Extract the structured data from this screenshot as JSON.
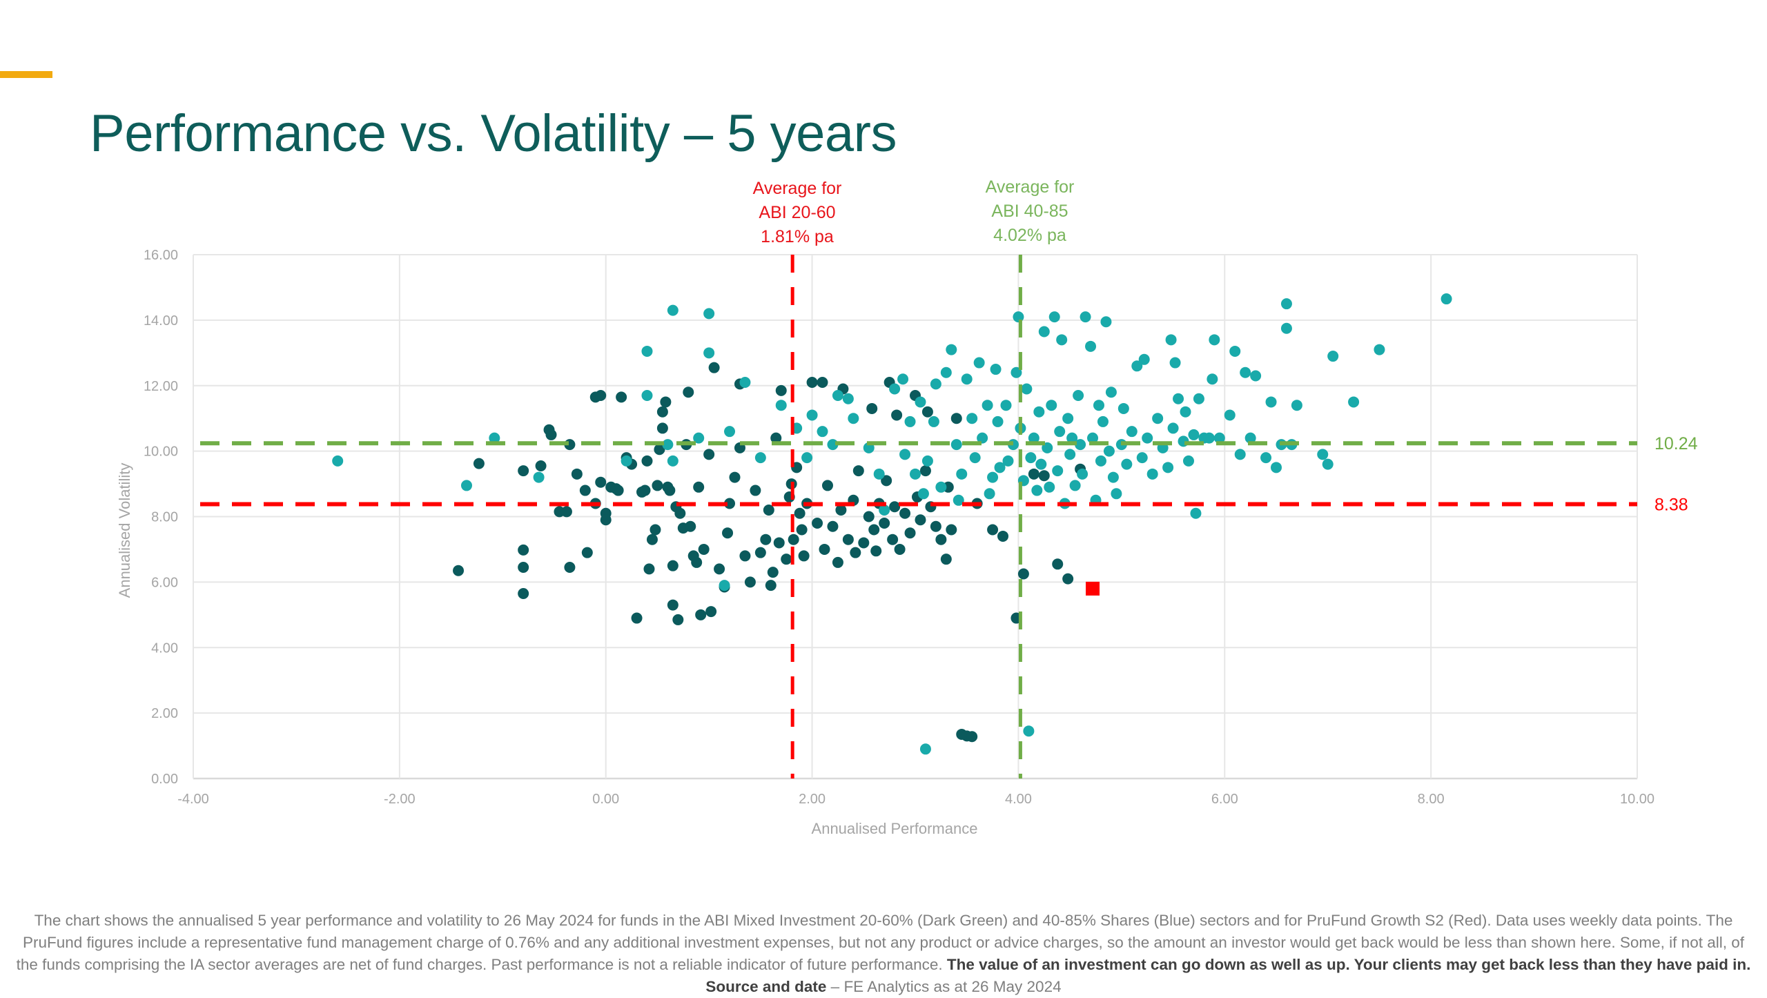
{
  "slide": {
    "title": "Performance vs. Volatility – 5 years",
    "accent_color": "#f2aa10",
    "title_color": "#0e5d5a"
  },
  "annotations": {
    "red_avg": [
      "Average for",
      "ABI 20-60",
      "1.81% pa"
    ],
    "green_avg": [
      "Average for",
      "ABI 40-85",
      "4.02% pa"
    ]
  },
  "footnote": {
    "plain1": "The chart shows the annualised 5 year performance and volatility to 26 May 2024 for funds in the ABI Mixed Investment 20-60% (Dark Green) and 40-85% Shares (Blue) sectors and for PruFund Growth S2 (Red). Data uses weekly data points. The PruFund figures include a representative fund management charge of 0.76% and any additional investment expenses, but not any product or advice charges, so the amount an investor would get back would be less than shown here.  Some, if not all, of the funds comprising the IA sector averages are net of fund charges.  Past performance is not a reliable indicator of future performance.  ",
    "bold1": "The value of an investment can go down as well as up. Your clients may get back less than they have paid in.   Source and date",
    "plain2": " – FE Analytics as at 26 May 2024"
  },
  "chart_data": {
    "type": "scatter",
    "title": "Performance vs. Volatility – 5 years",
    "xlabel": "Annualised Performance",
    "ylabel": "Annualised Volatility",
    "xlim": [
      -4,
      10
    ],
    "ylim": [
      0,
      16
    ],
    "x_ticks": [
      "-4.00",
      "-2.00",
      "0.00",
      "2.00",
      "4.00",
      "6.00",
      "8.00",
      "10.00"
    ],
    "y_ticks": [
      "0.00",
      "2.00",
      "4.00",
      "6.00",
      "8.00",
      "10.00",
      "12.00",
      "14.00",
      "16.00"
    ],
    "grid": true,
    "legend": "none",
    "reference_lines": [
      {
        "orientation": "vertical",
        "value": 1.81,
        "color": "#ff0000",
        "label": "Average for ABI 20-60 1.81% pa"
      },
      {
        "orientation": "vertical",
        "value": 4.02,
        "color": "#70ad47",
        "label": "Average for ABI 40-85 4.02% pa"
      },
      {
        "orientation": "horizontal",
        "value": 10.24,
        "color": "#70ad47",
        "label": "10.24"
      },
      {
        "orientation": "horizontal",
        "value": 8.38,
        "color": "#ff0000",
        "label": "8.38"
      }
    ],
    "series": [
      {
        "name": "ABI Mixed Investment 20-60% (Dark Green)",
        "color": "#0b5a5c",
        "marker": "circle",
        "points": [
          [
            -1.43,
            6.35
          ],
          [
            -1.23,
            9.62
          ],
          [
            -0.8,
            5.65
          ],
          [
            -0.8,
            6.45
          ],
          [
            -0.8,
            6.98
          ],
          [
            -0.8,
            9.4
          ],
          [
            -0.63,
            9.55
          ],
          [
            -0.55,
            10.65
          ],
          [
            -0.53,
            10.5
          ],
          [
            -0.45,
            8.15
          ],
          [
            -0.38,
            8.15
          ],
          [
            -0.35,
            10.2
          ],
          [
            -0.35,
            6.45
          ],
          [
            -0.28,
            9.3
          ],
          [
            -0.2,
            8.8
          ],
          [
            -0.18,
            6.9
          ],
          [
            -0.1,
            11.65
          ],
          [
            -0.05,
            11.7
          ],
          [
            -0.1,
            8.4
          ],
          [
            -0.05,
            9.05
          ],
          [
            0.0,
            8.1
          ],
          [
            0.0,
            7.9
          ],
          [
            0.05,
            8.9
          ],
          [
            0.1,
            8.85
          ],
          [
            0.12,
            8.8
          ],
          [
            0.2,
            9.8
          ],
          [
            0.15,
            11.65
          ],
          [
            0.25,
            9.6
          ],
          [
            0.3,
            4.9
          ],
          [
            0.35,
            8.75
          ],
          [
            0.38,
            8.8
          ],
          [
            0.4,
            9.7
          ],
          [
            0.42,
            6.4
          ],
          [
            0.45,
            7.3
          ],
          [
            0.48,
            7.6
          ],
          [
            0.5,
            8.95
          ],
          [
            0.52,
            10.05
          ],
          [
            0.55,
            10.7
          ],
          [
            0.55,
            11.2
          ],
          [
            0.58,
            11.5
          ],
          [
            0.6,
            8.9
          ],
          [
            0.62,
            8.8
          ],
          [
            0.65,
            5.3
          ],
          [
            0.65,
            6.5
          ],
          [
            0.68,
            8.3
          ],
          [
            0.7,
            4.85
          ],
          [
            0.72,
            8.1
          ],
          [
            0.75,
            7.65
          ],
          [
            0.78,
            10.2
          ],
          [
            0.8,
            11.8
          ],
          [
            0.82,
            7.7
          ],
          [
            0.85,
            6.8
          ],
          [
            0.88,
            6.6
          ],
          [
            0.9,
            8.9
          ],
          [
            0.92,
            5.0
          ],
          [
            0.95,
            7.0
          ],
          [
            1.0,
            9.9
          ],
          [
            1.02,
            5.1
          ],
          [
            1.05,
            12.55
          ],
          [
            1.1,
            6.4
          ],
          [
            1.15,
            5.85
          ],
          [
            1.18,
            7.5
          ],
          [
            1.2,
            8.4
          ],
          [
            1.25,
            9.2
          ],
          [
            1.3,
            10.1
          ],
          [
            1.3,
            12.05
          ],
          [
            1.35,
            6.8
          ],
          [
            1.4,
            6.0
          ],
          [
            1.45,
            8.8
          ],
          [
            1.5,
            6.9
          ],
          [
            1.55,
            7.3
          ],
          [
            1.58,
            8.2
          ],
          [
            1.6,
            5.9
          ],
          [
            1.62,
            6.3
          ],
          [
            1.65,
            10.4
          ],
          [
            1.68,
            7.2
          ],
          [
            1.7,
            11.85
          ],
          [
            1.75,
            6.7
          ],
          [
            1.78,
            8.6
          ],
          [
            1.8,
            9.0
          ],
          [
            1.82,
            7.3
          ],
          [
            1.85,
            9.5
          ],
          [
            1.88,
            8.1
          ],
          [
            1.9,
            7.6
          ],
          [
            1.92,
            6.8
          ],
          [
            1.95,
            8.4
          ],
          [
            2.0,
            12.1
          ],
          [
            2.05,
            7.8
          ],
          [
            2.1,
            12.1
          ],
          [
            2.12,
            7.0
          ],
          [
            2.15,
            8.95
          ],
          [
            2.2,
            7.7
          ],
          [
            2.25,
            6.6
          ],
          [
            2.28,
            8.2
          ],
          [
            2.3,
            11.9
          ],
          [
            2.35,
            7.3
          ],
          [
            2.4,
            8.5
          ],
          [
            2.42,
            6.9
          ],
          [
            2.45,
            9.4
          ],
          [
            2.5,
            7.2
          ],
          [
            2.55,
            8.0
          ],
          [
            2.58,
            11.3
          ],
          [
            2.6,
            7.6
          ],
          [
            2.62,
            6.95
          ],
          [
            2.65,
            8.4
          ],
          [
            2.7,
            7.8
          ],
          [
            2.72,
            9.1
          ],
          [
            2.75,
            12.1
          ],
          [
            2.78,
            7.3
          ],
          [
            2.8,
            8.3
          ],
          [
            2.82,
            11.1
          ],
          [
            2.85,
            7.0
          ],
          [
            2.9,
            8.1
          ],
          [
            2.95,
            7.5
          ],
          [
            3.0,
            11.7
          ],
          [
            3.02,
            8.6
          ],
          [
            3.05,
            7.9
          ],
          [
            3.1,
            9.4
          ],
          [
            3.12,
            11.2
          ],
          [
            3.15,
            8.3
          ],
          [
            3.2,
            7.7
          ],
          [
            3.25,
            7.3
          ],
          [
            3.3,
            6.7
          ],
          [
            3.32,
            8.9
          ],
          [
            3.35,
            7.6
          ],
          [
            3.4,
            11.0
          ],
          [
            3.45,
            1.35
          ],
          [
            3.5,
            1.3
          ],
          [
            3.55,
            1.28
          ],
          [
            3.6,
            8.4
          ],
          [
            3.75,
            7.6
          ],
          [
            3.85,
            7.4
          ],
          [
            3.98,
            4.9
          ],
          [
            4.05,
            6.25
          ],
          [
            4.15,
            9.3
          ],
          [
            4.25,
            9.25
          ],
          [
            4.38,
            6.55
          ],
          [
            4.48,
            6.1
          ],
          [
            4.6,
            9.45
          ]
        ]
      },
      {
        "name": "ABI Mixed Investment 40-85% Shares (Blue)",
        "color": "#19aaaa",
        "marker": "circle",
        "points": [
          [
            -2.6,
            9.7
          ],
          [
            -1.35,
            8.95
          ],
          [
            -1.08,
            10.4
          ],
          [
            -0.65,
            9.2
          ],
          [
            0.2,
            9.7
          ],
          [
            0.4,
            11.7
          ],
          [
            0.4,
            13.05
          ],
          [
            0.6,
            10.2
          ],
          [
            0.65,
            14.3
          ],
          [
            0.65,
            9.7
          ],
          [
            0.9,
            10.4
          ],
          [
            1.0,
            14.2
          ],
          [
            1.0,
            13.0
          ],
          [
            1.15,
            5.9
          ],
          [
            1.2,
            10.6
          ],
          [
            1.35,
            12.1
          ],
          [
            1.5,
            9.8
          ],
          [
            1.7,
            11.4
          ],
          [
            1.85,
            10.7
          ],
          [
            1.95,
            9.8
          ],
          [
            2.0,
            11.1
          ],
          [
            2.1,
            10.6
          ],
          [
            2.2,
            10.2
          ],
          [
            2.25,
            11.7
          ],
          [
            2.35,
            11.6
          ],
          [
            2.4,
            11.0
          ],
          [
            2.55,
            10.1
          ],
          [
            2.65,
            9.3
          ],
          [
            2.7,
            8.2
          ],
          [
            2.8,
            11.9
          ],
          [
            2.88,
            12.2
          ],
          [
            2.9,
            9.9
          ],
          [
            2.95,
            10.9
          ],
          [
            3.0,
            9.3
          ],
          [
            3.05,
            11.5
          ],
          [
            3.08,
            8.7
          ],
          [
            3.1,
            0.9
          ],
          [
            3.12,
            9.7
          ],
          [
            3.18,
            10.9
          ],
          [
            3.2,
            12.05
          ],
          [
            3.25,
            8.9
          ],
          [
            3.3,
            12.4
          ],
          [
            3.35,
            13.1
          ],
          [
            3.4,
            10.2
          ],
          [
            3.42,
            8.5
          ],
          [
            3.45,
            9.3
          ],
          [
            3.5,
            12.2
          ],
          [
            3.55,
            11.0
          ],
          [
            3.58,
            9.8
          ],
          [
            3.62,
            12.7
          ],
          [
            3.65,
            10.4
          ],
          [
            3.7,
            11.4
          ],
          [
            3.72,
            8.7
          ],
          [
            3.75,
            9.2
          ],
          [
            3.78,
            12.5
          ],
          [
            3.8,
            10.9
          ],
          [
            3.82,
            9.5
          ],
          [
            3.88,
            11.4
          ],
          [
            3.9,
            9.7
          ],
          [
            3.95,
            10.2
          ],
          [
            3.98,
            12.4
          ],
          [
            4.0,
            14.1
          ],
          [
            4.02,
            10.7
          ],
          [
            4.05,
            9.1
          ],
          [
            4.08,
            11.9
          ],
          [
            4.1,
            1.45
          ],
          [
            4.12,
            9.8
          ],
          [
            4.15,
            10.4
          ],
          [
            4.18,
            8.8
          ],
          [
            4.2,
            11.2
          ],
          [
            4.22,
            9.6
          ],
          [
            4.25,
            13.65
          ],
          [
            4.28,
            10.1
          ],
          [
            4.3,
            8.9
          ],
          [
            4.32,
            11.4
          ],
          [
            4.35,
            14.1
          ],
          [
            4.38,
            9.4
          ],
          [
            4.4,
            10.6
          ],
          [
            4.42,
            13.4
          ],
          [
            4.45,
            8.4
          ],
          [
            4.48,
            11.0
          ],
          [
            4.5,
            9.9
          ],
          [
            4.52,
            10.4
          ],
          [
            4.55,
            8.95
          ],
          [
            4.58,
            11.7
          ],
          [
            4.6,
            10.2
          ],
          [
            4.62,
            9.3
          ],
          [
            4.65,
            14.1
          ],
          [
            4.7,
            13.2
          ],
          [
            4.72,
            10.4
          ],
          [
            4.75,
            8.5
          ],
          [
            4.78,
            11.4
          ],
          [
            4.8,
            9.7
          ],
          [
            4.82,
            10.9
          ],
          [
            4.85,
            13.95
          ],
          [
            4.88,
            10.0
          ],
          [
            4.9,
            11.8
          ],
          [
            4.92,
            9.2
          ],
          [
            4.95,
            8.7
          ],
          [
            5.0,
            10.2
          ],
          [
            5.02,
            11.3
          ],
          [
            5.05,
            9.6
          ],
          [
            5.1,
            10.6
          ],
          [
            5.15,
            12.6
          ],
          [
            5.2,
            9.8
          ],
          [
            5.22,
            12.8
          ],
          [
            5.25,
            10.4
          ],
          [
            5.3,
            9.3
          ],
          [
            5.35,
            11.0
          ],
          [
            5.4,
            10.1
          ],
          [
            5.45,
            9.5
          ],
          [
            5.48,
            13.4
          ],
          [
            5.5,
            10.7
          ],
          [
            5.52,
            12.7
          ],
          [
            5.55,
            11.6
          ],
          [
            5.6,
            10.3
          ],
          [
            5.62,
            11.2
          ],
          [
            5.65,
            9.7
          ],
          [
            5.7,
            10.5
          ],
          [
            5.72,
            8.1
          ],
          [
            5.75,
            11.6
          ],
          [
            5.8,
            10.4
          ],
          [
            5.85,
            10.4
          ],
          [
            5.88,
            12.2
          ],
          [
            5.9,
            13.4
          ],
          [
            5.95,
            10.4
          ],
          [
            6.05,
            11.1
          ],
          [
            6.1,
            13.05
          ],
          [
            6.15,
            9.9
          ],
          [
            6.2,
            12.4
          ],
          [
            6.25,
            10.4
          ],
          [
            6.3,
            12.3
          ],
          [
            6.4,
            9.8
          ],
          [
            6.45,
            11.5
          ],
          [
            6.5,
            9.5
          ],
          [
            6.55,
            10.2
          ],
          [
            6.6,
            13.75
          ],
          [
            6.6,
            14.5
          ],
          [
            6.65,
            10.2
          ],
          [
            6.7,
            11.4
          ],
          [
            6.95,
            9.9
          ],
          [
            7.0,
            9.6
          ],
          [
            7.05,
            12.9
          ],
          [
            7.25,
            11.5
          ],
          [
            7.5,
            13.1
          ],
          [
            8.15,
            14.65
          ]
        ]
      },
      {
        "name": "PruFund Growth S2 (Red)",
        "color": "#ff0000",
        "marker": "square",
        "points": [
          [
            4.72,
            5.8
          ]
        ]
      }
    ]
  }
}
